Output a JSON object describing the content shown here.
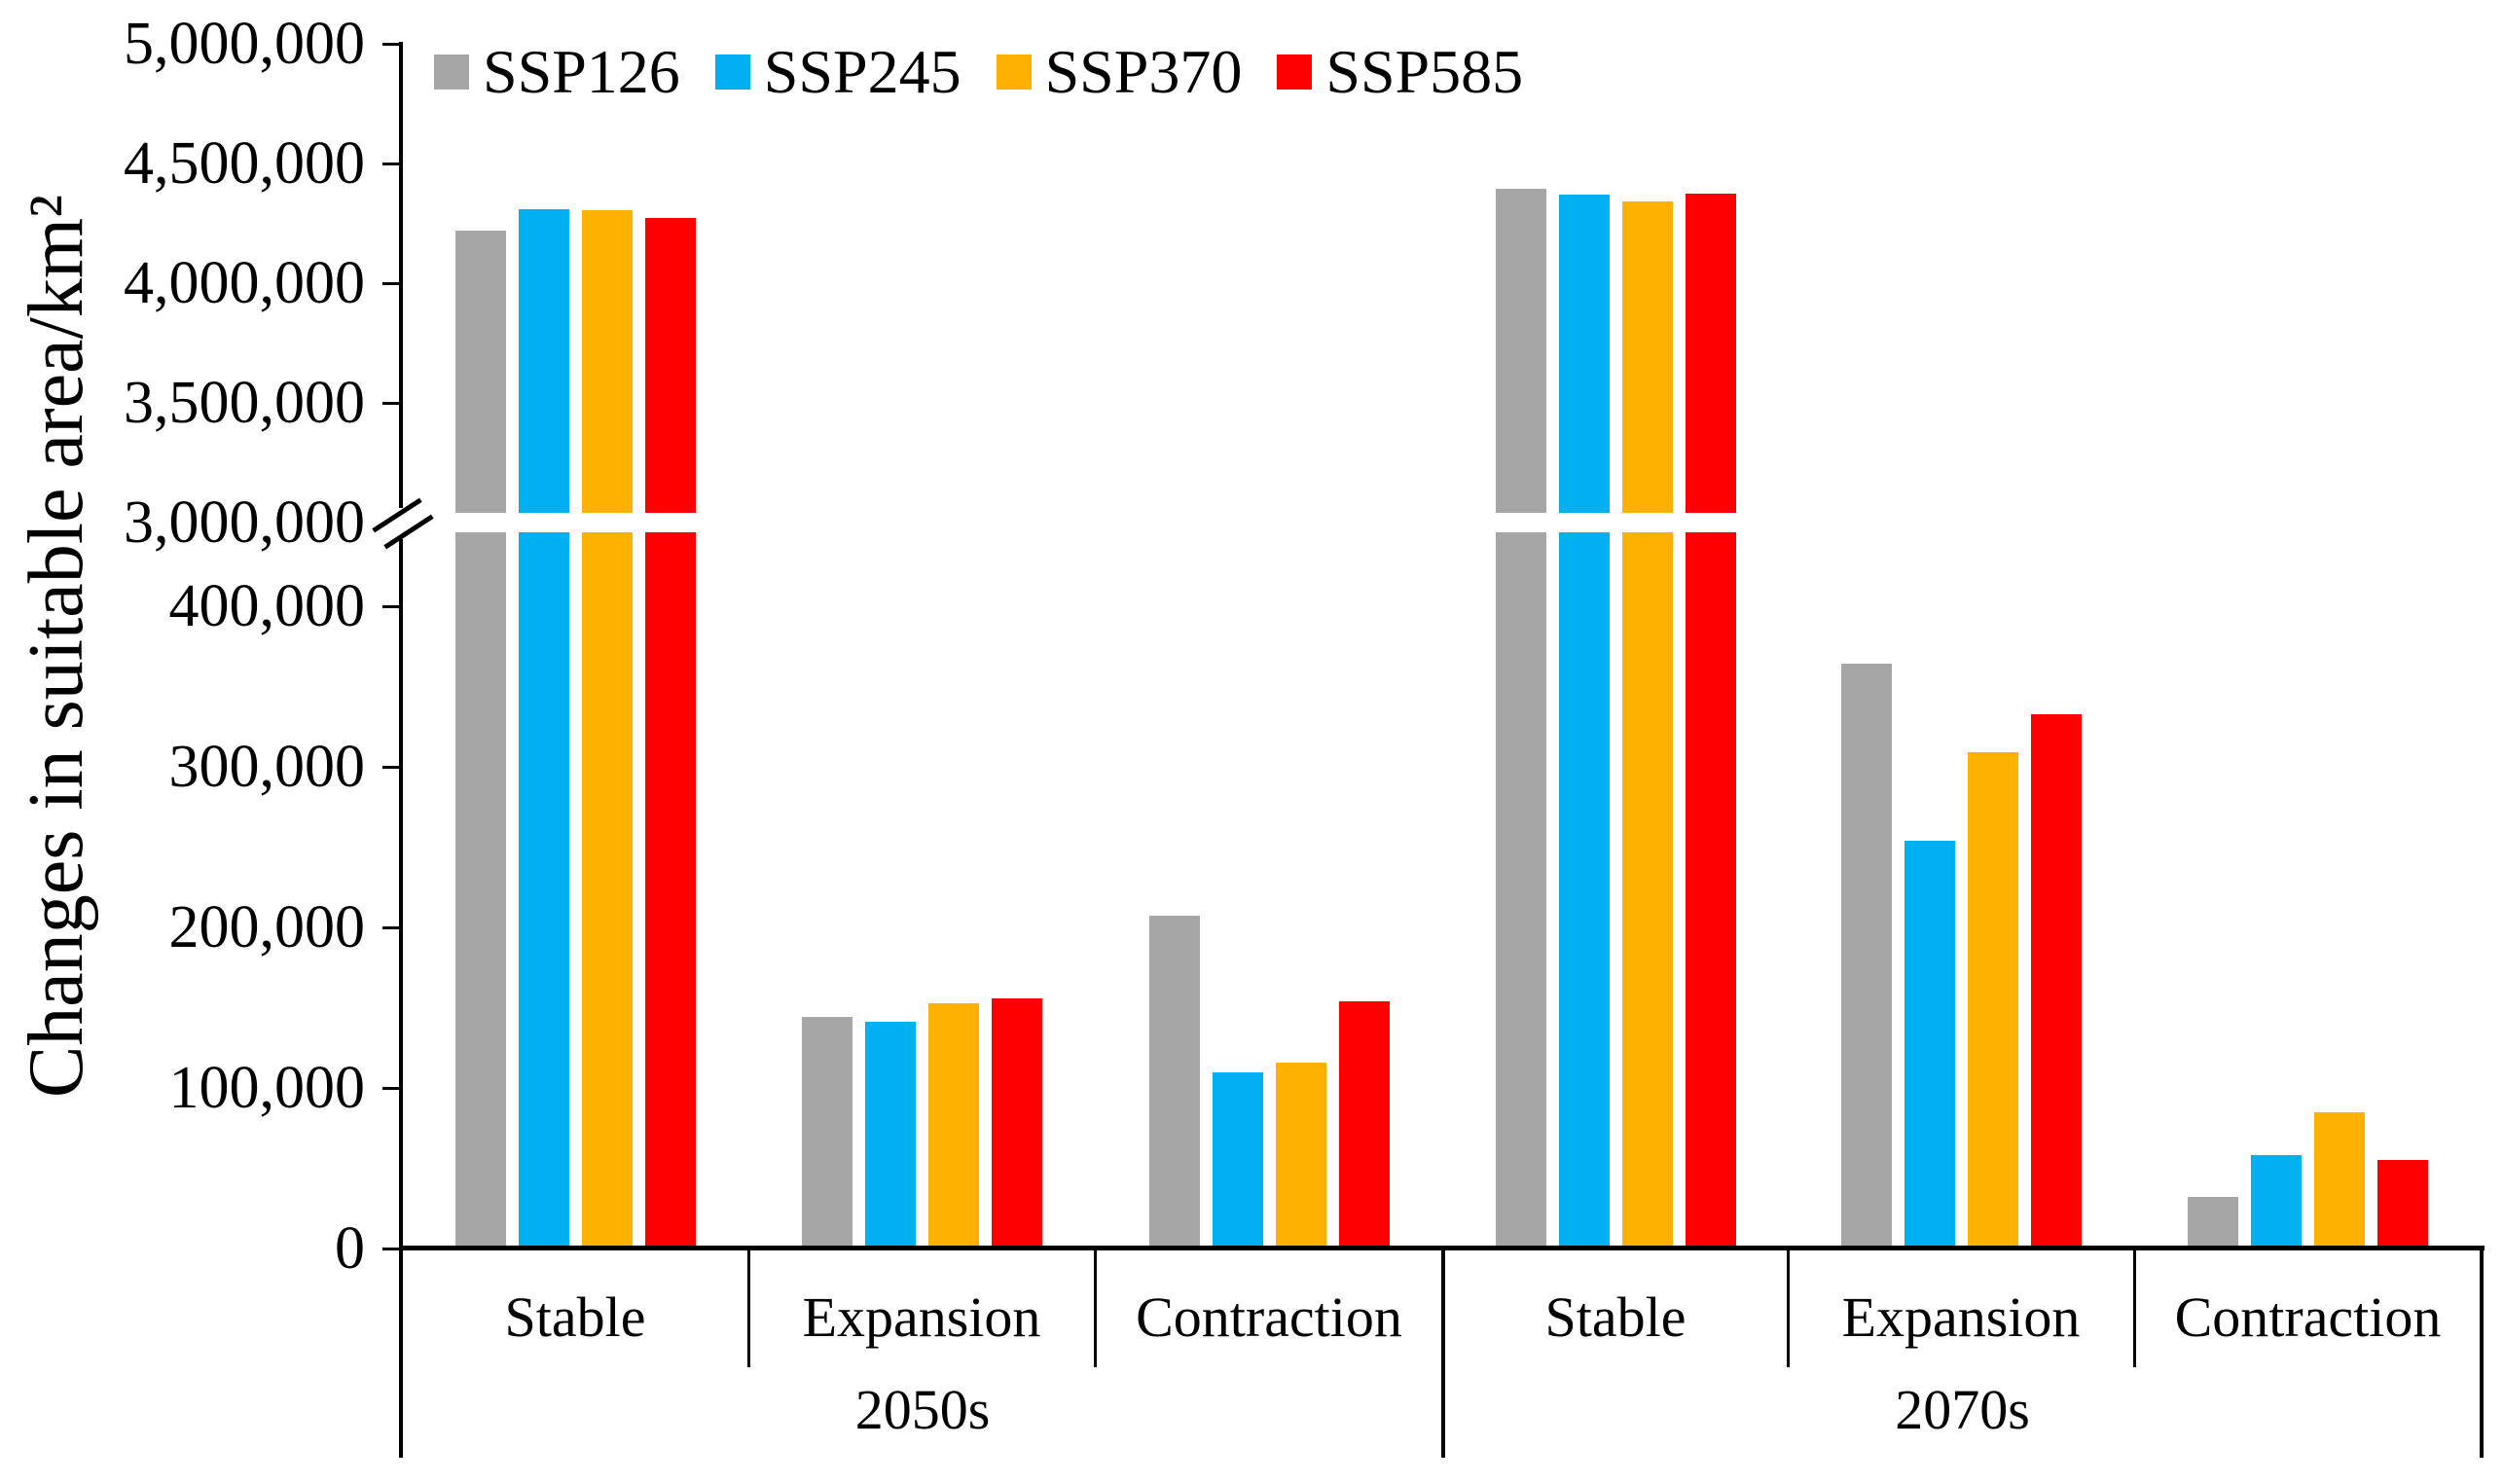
{
  "chart_data": {
    "type": "bar",
    "title": "",
    "ylabel": "Changes in suitable area/km²",
    "xlabel": "",
    "grid": false,
    "legend_position": "top-left",
    "broken_axis": {
      "lower_range": [
        0,
        400000
      ],
      "upper_range": [
        3000000,
        5000000
      ]
    },
    "y_ticks_upper": [
      {
        "value": 5000000,
        "label": "5,000,000"
      },
      {
        "value": 4500000,
        "label": "4,500,000"
      },
      {
        "value": 4000000,
        "label": "4,000,000"
      },
      {
        "value": 3500000,
        "label": "3,500,000"
      },
      {
        "value": 3000000,
        "label": "3,000,000"
      }
    ],
    "y_ticks_lower": [
      {
        "value": 400000,
        "label": "400,000"
      },
      {
        "value": 300000,
        "label": "300,000"
      },
      {
        "value": 200000,
        "label": "200,000"
      },
      {
        "value": 100000,
        "label": "100,000"
      },
      {
        "value": 0,
        "label": "0"
      }
    ],
    "series_names": [
      "SSP126",
      "SSP245",
      "SSP370",
      "SSP585"
    ],
    "series_colors": [
      "#A6A6A6",
      "#00B0F0",
      "#FFB000",
      "#FF0000"
    ],
    "periods": [
      {
        "label": "2050s",
        "categories": [
          {
            "label": "Stable",
            "values": [
              4220000,
              4310000,
              4305000,
              4272000
            ]
          },
          {
            "label": "Expansion",
            "values": [
              144000,
              141000,
              153000,
              156000
            ]
          },
          {
            "label": "Contraction",
            "values": [
              207000,
              110000,
              116000,
              154000
            ]
          }
        ]
      },
      {
        "label": "2070s",
        "categories": [
          {
            "label": "Stable",
            "values": [
              4394000,
              4370000,
              4341000,
              4374000
            ]
          },
          {
            "label": "Expansion",
            "values": [
              364000,
              254000,
              309000,
              333000
            ]
          },
          {
            "label": "Contraction",
            "values": [
              32000,
              58000,
              85000,
              55000
            ]
          }
        ]
      }
    ]
  }
}
